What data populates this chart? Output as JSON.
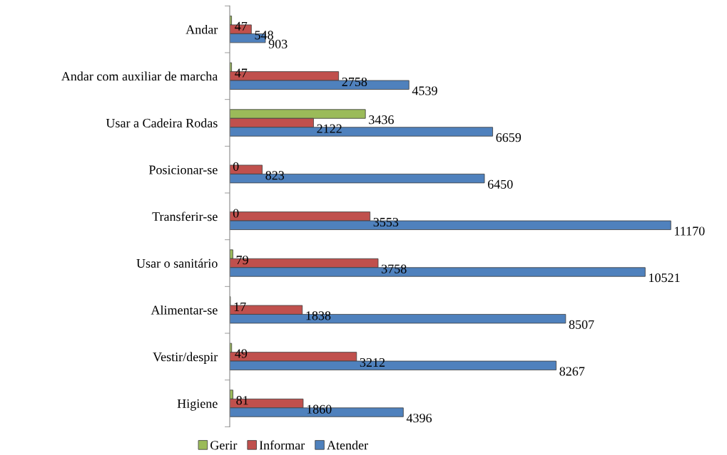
{
  "chart_data": {
    "type": "bar",
    "orientation": "horizontal",
    "categories": [
      "Andar",
      "Andar com auxiliar de marcha",
      "Usar a Cadeira Rodas",
      "Posicionar-se",
      "Transferir-se",
      "Usar o sanitário",
      "Alimentar-se",
      "Vestir/despir",
      "Higiene"
    ],
    "series": [
      {
        "name": "Gerir",
        "color": "#9bbb59",
        "values": [
          47,
          47,
          3436,
          0,
          0,
          79,
          17,
          49,
          81
        ]
      },
      {
        "name": "Informar",
        "color": "#c0504d",
        "values": [
          548,
          2758,
          2122,
          823,
          3553,
          3758,
          1838,
          3212,
          1860
        ]
      },
      {
        "name": "Atender",
        "color": "#4f81bd",
        "values": [
          903,
          4539,
          6659,
          6450,
          11170,
          10521,
          8507,
          8267,
          4396
        ]
      }
    ],
    "data_labels": true,
    "legend": "bottom",
    "grid": false,
    "tick_labels": "y"
  }
}
